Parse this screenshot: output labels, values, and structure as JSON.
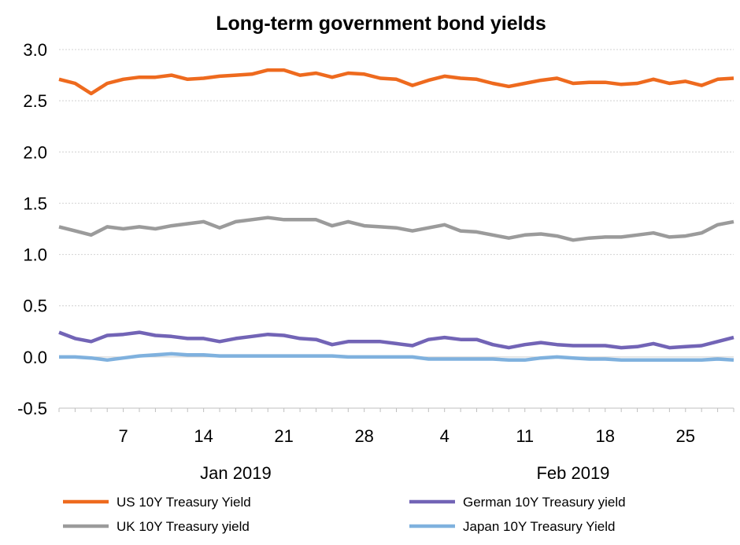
{
  "chart_data": {
    "type": "line",
    "title": "Long-term government bond yields",
    "xlabel": "",
    "ylabel": "",
    "ylim": [
      -0.5,
      3.0
    ],
    "yticks": [
      "3.0",
      "2.5",
      "2.0",
      "1.5",
      "1.0",
      "0.5",
      "0.0",
      "-0.5"
    ],
    "ytick_values": [
      3.0,
      2.5,
      2.0,
      1.5,
      1.0,
      0.5,
      0.0,
      -0.5
    ],
    "xticks": [
      {
        "date": "2019-01-07",
        "label": "7"
      },
      {
        "date": "2019-01-14",
        "label": "14"
      },
      {
        "date": "2019-01-21",
        "label": "21"
      },
      {
        "date": "2019-01-28",
        "label": "28"
      },
      {
        "date": "2019-02-04",
        "label": "4"
      },
      {
        "date": "2019-02-11",
        "label": "11"
      },
      {
        "date": "2019-02-18",
        "label": "18"
      },
      {
        "date": "2019-02-25",
        "label": "25"
      }
    ],
    "month_labels": [
      {
        "label": "Jan 2019",
        "date": "2019-01-16"
      },
      {
        "label": "Feb 2019",
        "date": "2019-02-14"
      }
    ],
    "grid": true,
    "legend_position": "bottom",
    "x": [
      "2019-01-01",
      "2019-01-02",
      "2019-01-03",
      "2019-01-04",
      "2019-01-07",
      "2019-01-08",
      "2019-01-09",
      "2019-01-10",
      "2019-01-11",
      "2019-01-14",
      "2019-01-15",
      "2019-01-16",
      "2019-01-17",
      "2019-01-18",
      "2019-01-21",
      "2019-01-22",
      "2019-01-23",
      "2019-01-24",
      "2019-01-25",
      "2019-01-28",
      "2019-01-29",
      "2019-01-30",
      "2019-01-31",
      "2019-02-01",
      "2019-02-04",
      "2019-02-05",
      "2019-02-06",
      "2019-02-07",
      "2019-02-08",
      "2019-02-11",
      "2019-02-12",
      "2019-02-13",
      "2019-02-14",
      "2019-02-15",
      "2019-02-18",
      "2019-02-19",
      "2019-02-20",
      "2019-02-21",
      "2019-02-22",
      "2019-02-25",
      "2019-02-26",
      "2019-02-27",
      "2019-02-28"
    ],
    "series": [
      {
        "name": "US 10Y Treasury Yield",
        "color": "#EE6A1E",
        "values": [
          2.71,
          2.67,
          2.57,
          2.67,
          2.71,
          2.73,
          2.73,
          2.75,
          2.71,
          2.72,
          2.74,
          2.75,
          2.76,
          2.8,
          2.8,
          2.75,
          2.77,
          2.73,
          2.77,
          2.76,
          2.72,
          2.71,
          2.65,
          2.7,
          2.74,
          2.72,
          2.71,
          2.67,
          2.64,
          2.67,
          2.7,
          2.72,
          2.67,
          2.68,
          2.68,
          2.66,
          2.67,
          2.71,
          2.67,
          2.69,
          2.65,
          2.71,
          2.72
        ]
      },
      {
        "name": "UK 10Y Treasury yield",
        "color": "#9B9B9B",
        "values": [
          1.27,
          1.23,
          1.19,
          1.27,
          1.25,
          1.27,
          1.25,
          1.28,
          1.3,
          1.32,
          1.26,
          1.32,
          1.34,
          1.36,
          1.34,
          1.34,
          1.34,
          1.28,
          1.32,
          1.28,
          1.27,
          1.26,
          1.23,
          1.26,
          1.29,
          1.23,
          1.22,
          1.19,
          1.16,
          1.19,
          1.2,
          1.18,
          1.14,
          1.16,
          1.17,
          1.17,
          1.19,
          1.21,
          1.17,
          1.18,
          1.21,
          1.29,
          1.32
        ]
      },
      {
        "name": "German 10Y Treasury yield",
        "color": "#7264B6",
        "values": [
          0.24,
          0.18,
          0.15,
          0.21,
          0.22,
          0.24,
          0.21,
          0.2,
          0.18,
          0.18,
          0.15,
          0.18,
          0.2,
          0.22,
          0.21,
          0.18,
          0.17,
          0.12,
          0.15,
          0.15,
          0.15,
          0.13,
          0.11,
          0.17,
          0.19,
          0.17,
          0.17,
          0.12,
          0.09,
          0.12,
          0.14,
          0.12,
          0.11,
          0.11,
          0.11,
          0.09,
          0.1,
          0.13,
          0.09,
          0.1,
          0.11,
          0.15,
          0.19
        ]
      },
      {
        "name": "Japan 10Y Treasury Yield",
        "color": "#7FB1DE",
        "values": [
          0.0,
          0.0,
          -0.01,
          -0.03,
          -0.01,
          0.01,
          0.02,
          0.03,
          0.02,
          0.02,
          0.01,
          0.01,
          0.01,
          0.01,
          0.01,
          0.01,
          0.01,
          0.01,
          0.0,
          0.0,
          0.0,
          0.0,
          0.0,
          -0.02,
          -0.02,
          -0.02,
          -0.02,
          -0.02,
          -0.03,
          -0.03,
          -0.01,
          0.0,
          -0.01,
          -0.02,
          -0.02,
          -0.03,
          -0.03,
          -0.03,
          -0.03,
          -0.03,
          -0.03,
          -0.02,
          -0.03
        ]
      }
    ]
  }
}
